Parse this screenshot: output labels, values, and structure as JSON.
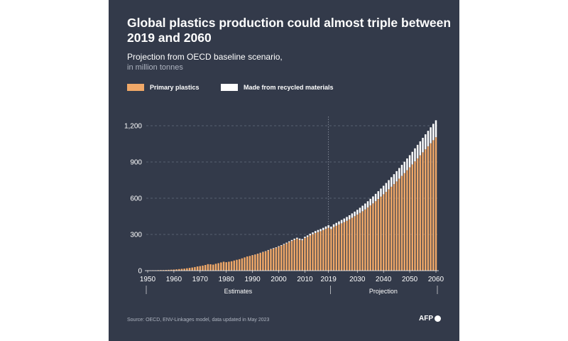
{
  "title": "Global plastics production could almost triple between 2019 and 2060",
  "subtitle": "Projection from OECD baseline scenario,",
  "unit": "in million tonnes",
  "legend": {
    "primary": "Primary plastics",
    "recycled": "Made from recycled materials"
  },
  "source": "Source: OECD, ENV-Linkages model, data updated in May 2023",
  "logo": "AFP",
  "colors": {
    "background": "#333a4a",
    "primary": "#f0a868",
    "recycled": "#ffffff"
  },
  "chart_data": {
    "type": "bar",
    "stacked": true,
    "title": "Global plastics production could almost triple between 2019 and 2060",
    "ylim": [
      0,
      1300
    ],
    "yticks": [
      0,
      300,
      600,
      900,
      1200
    ],
    "ytick_labels": [
      "0",
      "300",
      "600",
      "900",
      "1,200"
    ],
    "xticks": [
      1950,
      1960,
      1970,
      1980,
      1990,
      2000,
      2010,
      2019,
      2030,
      2040,
      2050,
      2060
    ],
    "periods": [
      {
        "label": "Estimates",
        "from": 1950,
        "to": 2019
      },
      {
        "label": "Projection",
        "from": 2020,
        "to": 2060
      }
    ],
    "divider_year": 2019,
    "x": [
      1950,
      1951,
      1952,
      1953,
      1954,
      1955,
      1956,
      1957,
      1958,
      1959,
      1960,
      1961,
      1962,
      1963,
      1964,
      1965,
      1966,
      1967,
      1968,
      1969,
      1970,
      1971,
      1972,
      1973,
      1974,
      1975,
      1976,
      1977,
      1978,
      1979,
      1980,
      1981,
      1982,
      1983,
      1984,
      1985,
      1986,
      1987,
      1988,
      1989,
      1990,
      1991,
      1992,
      1993,
      1994,
      1995,
      1996,
      1997,
      1998,
      1999,
      2000,
      2001,
      2002,
      2003,
      2004,
      2005,
      2006,
      2007,
      2008,
      2009,
      2010,
      2011,
      2012,
      2013,
      2014,
      2015,
      2016,
      2017,
      2018,
      2019,
      2020,
      2021,
      2022,
      2023,
      2024,
      2025,
      2026,
      2027,
      2028,
      2029,
      2030,
      2031,
      2032,
      2033,
      2034,
      2035,
      2036,
      2037,
      2038,
      2039,
      2040,
      2041,
      2042,
      2043,
      2044,
      2045,
      2046,
      2047,
      2048,
      2049,
      2050,
      2051,
      2052,
      2053,
      2054,
      2055,
      2056,
      2057,
      2058,
      2059,
      2060
    ],
    "series": [
      {
        "name": "Primary plastics",
        "color": "#f0a868",
        "values": [
          2,
          2,
          3,
          3,
          4,
          5,
          5,
          6,
          7,
          8,
          9,
          11,
          13,
          15,
          17,
          20,
          23,
          26,
          30,
          35,
          38,
          42,
          47,
          54,
          53,
          50,
          57,
          62,
          68,
          74,
          70,
          74,
          78,
          84,
          90,
          95,
          102,
          110,
          118,
          122,
          128,
          133,
          140,
          146,
          154,
          160,
          168,
          177,
          183,
          190,
          198,
          206,
          216,
          226,
          236,
          246,
          256,
          264,
          256,
          252,
          270,
          280,
          292,
          302,
          312,
          320,
          327,
          336,
          346,
          355,
          345,
          362,
          372,
          382,
          392,
          402,
          413,
          425,
          438,
          451,
          464,
          478,
          492,
          507,
          523,
          540,
          557,
          575,
          594,
          613,
          633,
          653,
          674,
          695,
          717,
          739,
          762,
          785,
          808,
          832,
          856,
          880,
          905,
          930,
          955,
          980,
          1005,
          1030,
          1055,
          1080,
          1105
        ]
      },
      {
        "name": "Made from recycled materials",
        "color": "#ffffff",
        "values": [
          0,
          0,
          0,
          0,
          0,
          0,
          0,
          0,
          0,
          0,
          0,
          0,
          0,
          0,
          0,
          0,
          0,
          0,
          0,
          0,
          0,
          0,
          0,
          0,
          0,
          0,
          0,
          0,
          0,
          0,
          0,
          0,
          0,
          0,
          0,
          0,
          0,
          0,
          0,
          0,
          1,
          1,
          1,
          2,
          2,
          2,
          3,
          3,
          4,
          4,
          5,
          5,
          6,
          6,
          7,
          8,
          9,
          9,
          10,
          10,
          11,
          12,
          14,
          15,
          16,
          17,
          18,
          19,
          20,
          21,
          20,
          22,
          24,
          26,
          28,
          30,
          32,
          34,
          36,
          38,
          40,
          43,
          46,
          49,
          52,
          55,
          58,
          61,
          64,
          67,
          70,
          73,
          76,
          79,
          82,
          85,
          88,
          91,
          94,
          97,
          100,
          104,
          108,
          112,
          116,
          120,
          124,
          128,
          132,
          136,
          140
        ]
      }
    ]
  }
}
